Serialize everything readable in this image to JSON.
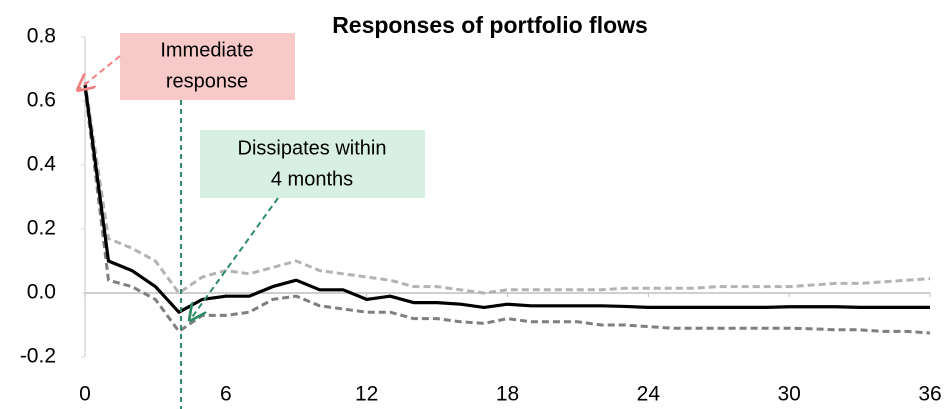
{
  "chart_data": {
    "type": "line",
    "title": "Responses of portfolio flows",
    "x": [
      0,
      1,
      2,
      3,
      4,
      5,
      6,
      7,
      8,
      9,
      10,
      11,
      12,
      13,
      14,
      15,
      16,
      17,
      18,
      19,
      20,
      21,
      22,
      23,
      24,
      25,
      26,
      27,
      28,
      29,
      30,
      31,
      32,
      33,
      34,
      35,
      36
    ],
    "xlim": [
      0,
      36
    ],
    "xticks": [
      0,
      6,
      12,
      18,
      24,
      30,
      36
    ],
    "ylim": [
      -0.2,
      0.8
    ],
    "yticks": [
      {
        "value": -0.2,
        "label": "-0.2"
      },
      {
        "value": 0,
        "label": "0.0"
      },
      {
        "value": 0.2,
        "label": "0.2"
      },
      {
        "value": 0.4,
        "label": "0.4"
      },
      {
        "value": 0.6,
        "label": "0.6"
      },
      {
        "value": 0.8,
        "label": "0.8"
      }
    ],
    "series": [
      {
        "color": "#b3b3b3",
        "dash": true,
        "values": [
          0.66,
          0.17,
          0.14,
          0.1,
          0.0,
          0.05,
          0.07,
          0.06,
          0.08,
          0.1,
          0.07,
          0.06,
          0.05,
          0.04,
          0.02,
          0.02,
          0.01,
          0.0,
          0.01,
          0.01,
          0.01,
          0.01,
          0.01,
          0.015,
          0.015,
          0.015,
          0.015,
          0.02,
          0.02,
          0.02,
          0.02,
          0.025,
          0.03,
          0.03,
          0.035,
          0.04,
          0.045
        ]
      },
      {
        "color": "#7f7f7f",
        "dash": true,
        "values": [
          0.64,
          0.04,
          0.02,
          -0.02,
          -0.12,
          -0.07,
          -0.07,
          -0.06,
          -0.02,
          -0.01,
          -0.04,
          -0.05,
          -0.06,
          -0.06,
          -0.08,
          -0.08,
          -0.09,
          -0.095,
          -0.08,
          -0.09,
          -0.09,
          -0.09,
          -0.1,
          -0.1,
          -0.105,
          -0.11,
          -0.11,
          -0.11,
          -0.11,
          -0.11,
          -0.11,
          -0.112,
          -0.115,
          -0.115,
          -0.12,
          -0.12,
          -0.125
        ]
      },
      {
        "color": "#000000",
        "dash": false,
        "values": [
          0.65,
          0.1,
          0.07,
          0.02,
          -0.06,
          -0.02,
          -0.01,
          -0.01,
          0.02,
          0.04,
          0.01,
          0.01,
          -0.02,
          -0.01,
          -0.03,
          -0.03,
          -0.035,
          -0.045,
          -0.035,
          -0.04,
          -0.04,
          -0.04,
          -0.04,
          -0.042,
          -0.045,
          -0.045,
          -0.045,
          -0.045,
          -0.045,
          -0.045,
          -0.043,
          -0.043,
          -0.043,
          -0.045,
          -0.045,
          -0.045,
          -0.045
        ]
      }
    ],
    "annotations": [
      {
        "lines": [
          "Immediate",
          "response"
        ],
        "color": "#f8c9c9",
        "arrow": "#f08080"
      },
      {
        "lines": [
          "Dissipates within",
          "4 months"
        ],
        "color": "#d8efe4",
        "arrow": "#2e8b66"
      }
    ]
  }
}
